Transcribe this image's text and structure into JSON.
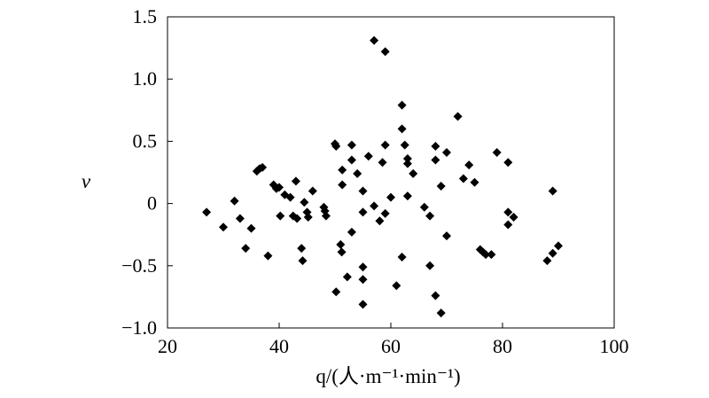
{
  "chart_data": {
    "type": "scatter",
    "title": "",
    "xlabel": "q/(人·m⁻¹·min⁻¹)",
    "ylabel": "v",
    "xlim": [
      20,
      100
    ],
    "ylim": [
      -1.0,
      1.5
    ],
    "x_ticks": [
      20,
      40,
      60,
      80,
      100
    ],
    "x_tick_labels": [
      "20",
      "40",
      "60",
      "80",
      "100"
    ],
    "y_ticks": [
      -1.0,
      -0.5,
      0,
      0.5,
      1.0,
      1.5
    ],
    "y_tick_labels": [
      "−1.0",
      "−0.5",
      "0",
      "0.5",
      "1.0",
      "1.5"
    ],
    "grid": false,
    "marker": "diamond",
    "marker_color": "#000000",
    "points": [
      [
        27,
        -0.07
      ],
      [
        30,
        -0.19
      ],
      [
        32,
        0.02
      ],
      [
        33,
        -0.12
      ],
      [
        34,
        -0.36
      ],
      [
        35,
        -0.2
      ],
      [
        36,
        0.26
      ],
      [
        36.5,
        0.28
      ],
      [
        37,
        0.29
      ],
      [
        38,
        -0.42
      ],
      [
        39,
        0.15
      ],
      [
        39.5,
        0.12
      ],
      [
        40,
        0.13
      ],
      [
        40.2,
        -0.1
      ],
      [
        41,
        0.07
      ],
      [
        42,
        0.05
      ],
      [
        42.5,
        -0.1
      ],
      [
        43,
        0.18
      ],
      [
        43.2,
        -0.12
      ],
      [
        44,
        -0.36
      ],
      [
        44.2,
        -0.46
      ],
      [
        44.5,
        0.01
      ],
      [
        45,
        -0.07
      ],
      [
        45.2,
        -0.11
      ],
      [
        46,
        0.1
      ],
      [
        48,
        -0.03
      ],
      [
        48.2,
        -0.06
      ],
      [
        48.4,
        -0.1
      ],
      [
        50,
        0.48
      ],
      [
        50.2,
        0.46
      ],
      [
        50.2,
        -0.71
      ],
      [
        51,
        -0.33
      ],
      [
        51.2,
        -0.39
      ],
      [
        51.3,
        0.27
      ],
      [
        51.3,
        0.15
      ],
      [
        53,
        0.47
      ],
      [
        53,
        0.35
      ],
      [
        53,
        -0.23
      ],
      [
        52.2,
        -0.59
      ],
      [
        54,
        0.24
      ],
      [
        55,
        0.1
      ],
      [
        55,
        -0.51
      ],
      [
        55,
        -0.61
      ],
      [
        55,
        -0.81
      ],
      [
        55,
        -0.07
      ],
      [
        56,
        0.38
      ],
      [
        57,
        1.31
      ],
      [
        57,
        -0.02
      ],
      [
        58,
        -0.14
      ],
      [
        58.5,
        0.33
      ],
      [
        59,
        0.47
      ],
      [
        59,
        1.22
      ],
      [
        59,
        -0.08
      ],
      [
        60,
        0.05
      ],
      [
        61,
        -0.66
      ],
      [
        62,
        0.79
      ],
      [
        62,
        0.6
      ],
      [
        62,
        -0.43
      ],
      [
        62.5,
        0.47
      ],
      [
        63,
        0.36
      ],
      [
        63,
        0.32
      ],
      [
        63,
        0.06
      ],
      [
        64,
        0.24
      ],
      [
        66,
        -0.03
      ],
      [
        67,
        -0.1
      ],
      [
        67,
        -0.5
      ],
      [
        68,
        0.46
      ],
      [
        68,
        0.35
      ],
      [
        68,
        -0.74
      ],
      [
        69,
        0.14
      ],
      [
        69,
        -0.88
      ],
      [
        70,
        0.41
      ],
      [
        70,
        -0.26
      ],
      [
        72,
        0.7
      ],
      [
        73,
        0.2
      ],
      [
        74,
        0.31
      ],
      [
        75,
        0.17
      ],
      [
        76,
        -0.37
      ],
      [
        76.5,
        -0.39
      ],
      [
        77,
        -0.41
      ],
      [
        78,
        -0.41
      ],
      [
        79,
        0.41
      ],
      [
        81,
        0.33
      ],
      [
        81,
        -0.07
      ],
      [
        81,
        -0.17
      ],
      [
        82,
        -0.11
      ],
      [
        88,
        -0.46
      ],
      [
        89,
        -0.4
      ],
      [
        89,
        0.1
      ],
      [
        90,
        -0.34
      ]
    ]
  }
}
